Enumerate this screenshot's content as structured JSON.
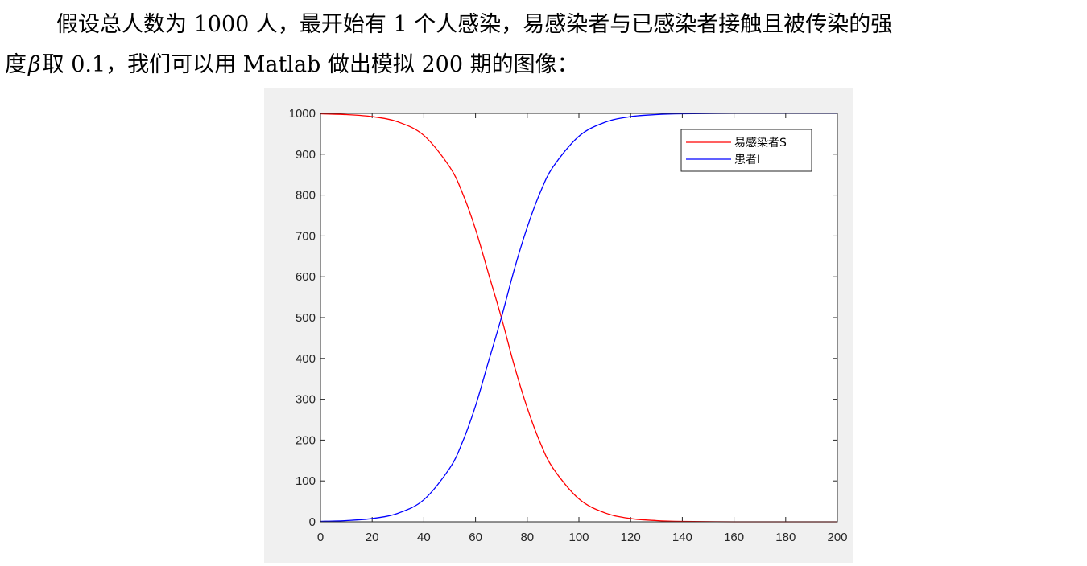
{
  "text": {
    "line1": "假设总人数为 1000 人，最开始有 1 个人感染，易感染者与已感染者接触且被传染的强",
    "line2_pre": "度",
    "line2_beta": "β",
    "line2_post": "取 0.1，我们可以用 Matlab 做出模拟 200 期的图像："
  },
  "chart_data": {
    "type": "line",
    "xlim": [
      0,
      200
    ],
    "ylim": [
      0,
      1000
    ],
    "xticks": [
      "0",
      "20",
      "40",
      "60",
      "80",
      "100",
      "120",
      "140",
      "160",
      "180",
      "200"
    ],
    "yticks": [
      "0",
      "100",
      "200",
      "300",
      "400",
      "500",
      "600",
      "700",
      "800",
      "900",
      "1000"
    ],
    "grid": false,
    "legend_position": "top-right",
    "series": [
      {
        "name": "易感染者S",
        "color": "#ff0000",
        "x": [
          0,
          10,
          20,
          30,
          40,
          50,
          55,
          60,
          65,
          70,
          75,
          80,
          85,
          90,
          100,
          110,
          120,
          130,
          140,
          160,
          180,
          200
        ],
        "values": [
          999,
          997,
          992,
          979,
          946,
          869,
          804,
          716,
          608,
          500,
          382,
          279,
          194,
          131,
          56,
          22,
          8,
          3,
          1,
          0,
          0,
          0
        ]
      },
      {
        "name": "患者I",
        "color": "#0000ff",
        "x": [
          0,
          10,
          20,
          30,
          40,
          50,
          55,
          60,
          65,
          70,
          75,
          80,
          85,
          90,
          100,
          110,
          120,
          130,
          140,
          160,
          180,
          200
        ],
        "values": [
          1,
          3,
          8,
          21,
          54,
          131,
          196,
          284,
          392,
          500,
          618,
          721,
          806,
          869,
          944,
          978,
          992,
          997,
          999,
          1000,
          1000,
          1000
        ]
      }
    ]
  }
}
